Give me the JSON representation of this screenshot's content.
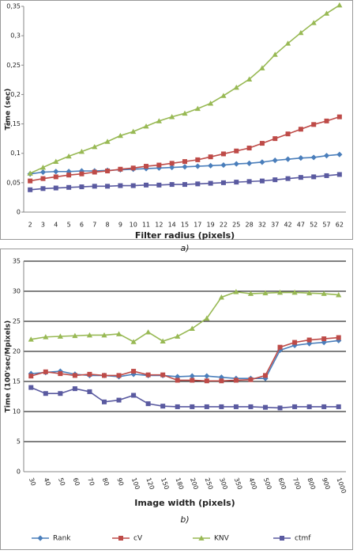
{
  "chart_data": [
    {
      "type": "line",
      "caption": "a)",
      "x_label": "Filter radius (pixels)",
      "y_label": "Time (sec)",
      "categories": [
        "2",
        "3",
        "4",
        "5",
        "6",
        "7",
        "8",
        "9",
        "10",
        "11",
        "12",
        "14",
        "15",
        "17",
        "19",
        "22",
        "25",
        "28",
        "32",
        "37",
        "42",
        "47",
        "52",
        "57",
        "62"
      ],
      "ylim": [
        0,
        0.35
      ],
      "yticks": [
        0,
        {
          "value": 0.05,
          "label": "0,05"
        },
        {
          "value": 0.1,
          "label": "0,1"
        },
        {
          "value": 0.15,
          "label": "0,15"
        },
        {
          "value": 0.2,
          "label": "0,2"
        },
        {
          "value": 0.25,
          "label": "0,25"
        },
        {
          "value": 0.3,
          "label": "0,3"
        },
        {
          "value": 0.35,
          "label": "0,35"
        }
      ],
      "grid": false,
      "series": [
        {
          "name": "Rank",
          "color": "#4a7ebb",
          "marker": "diamond",
          "values": [
            0.065,
            0.068,
            0.069,
            0.069,
            0.07,
            0.07,
            0.071,
            0.072,
            0.073,
            0.074,
            0.075,
            0.076,
            0.077,
            0.078,
            0.079,
            0.08,
            0.082,
            0.083,
            0.085,
            0.088,
            0.09,
            0.092,
            0.093,
            0.096,
            0.098
          ]
        },
        {
          "name": "cV",
          "color": "#be4b48",
          "marker": "square",
          "values": [
            0.053,
            0.057,
            0.06,
            0.063,
            0.065,
            0.068,
            0.07,
            0.073,
            0.075,
            0.078,
            0.08,
            0.083,
            0.086,
            0.089,
            0.094,
            0.099,
            0.104,
            0.109,
            0.117,
            0.125,
            0.133,
            0.141,
            0.149,
            0.155,
            0.162
          ]
        },
        {
          "name": "KNV",
          "color": "#98b954",
          "marker": "triangle",
          "values": [
            0.066,
            0.076,
            0.086,
            0.095,
            0.103,
            0.111,
            0.12,
            0.13,
            0.137,
            0.146,
            0.155,
            0.162,
            0.168,
            0.176,
            0.185,
            0.198,
            0.212,
            0.226,
            0.245,
            0.268,
            0.287,
            0.305,
            0.322,
            0.338,
            0.352
          ]
        },
        {
          "name": "ctmf",
          "color": "#5a5aa0",
          "marker": "square",
          "values": [
            0.038,
            0.04,
            0.041,
            0.042,
            0.043,
            0.044,
            0.044,
            0.045,
            0.045,
            0.046,
            0.046,
            0.047,
            0.047,
            0.048,
            0.049,
            0.05,
            0.051,
            0.052,
            0.053,
            0.055,
            0.057,
            0.059,
            0.06,
            0.062,
            0.064
          ]
        }
      ]
    },
    {
      "type": "line",
      "caption": "b)",
      "x_label": "Image width (pixels)",
      "y_label": "Time (100'sec/Mpixels)",
      "categories": [
        "30",
        "40",
        "50",
        "60",
        "70",
        "80",
        "90",
        "100",
        "120",
        "150",
        "180",
        "200",
        "250",
        "300",
        "350",
        "400",
        "500",
        "600",
        "700",
        "800",
        "900",
        "1000"
      ],
      "ylim": [
        0,
        35
      ],
      "yticks": [
        0,
        5,
        10,
        15,
        20,
        25,
        30,
        35
      ],
      "grid": true,
      "legend": "bottom",
      "series": [
        {
          "name": "Rank",
          "color": "#4a7ebb",
          "marker": "diamond",
          "values": [
            16.3,
            16.5,
            16.7,
            16.2,
            16.0,
            16.0,
            15.8,
            16.2,
            16.0,
            16.0,
            15.8,
            15.9,
            15.9,
            15.7,
            15.5,
            15.5,
            15.5,
            20.2,
            21.0,
            21.3,
            21.5,
            21.8
          ]
        },
        {
          "name": "cV",
          "color": "#be4b48",
          "marker": "square",
          "values": [
            15.9,
            16.6,
            16.3,
            16.0,
            16.2,
            16.0,
            16.0,
            16.7,
            16.1,
            16.1,
            15.2,
            15.2,
            15.1,
            15.1,
            15.2,
            15.3,
            16.0,
            20.7,
            21.5,
            21.9,
            22.1,
            22.3
          ]
        },
        {
          "name": "KNV",
          "color": "#98b954",
          "marker": "triangle",
          "values": [
            22.0,
            22.4,
            22.5,
            22.6,
            22.7,
            22.7,
            22.9,
            21.6,
            23.2,
            21.7,
            22.5,
            23.8,
            25.5,
            29.0,
            29.9,
            29.6,
            29.7,
            29.8,
            29.8,
            29.7,
            29.6,
            29.4
          ]
        },
        {
          "name": "ctmf",
          "color": "#5a5aa0",
          "marker": "square",
          "values": [
            14.0,
            13.0,
            13.0,
            13.8,
            13.3,
            11.6,
            11.9,
            12.7,
            11.3,
            10.9,
            10.8,
            10.8,
            10.8,
            10.8,
            10.8,
            10.8,
            10.7,
            10.6,
            10.8,
            10.8,
            10.8,
            10.8
          ]
        }
      ]
    }
  ]
}
